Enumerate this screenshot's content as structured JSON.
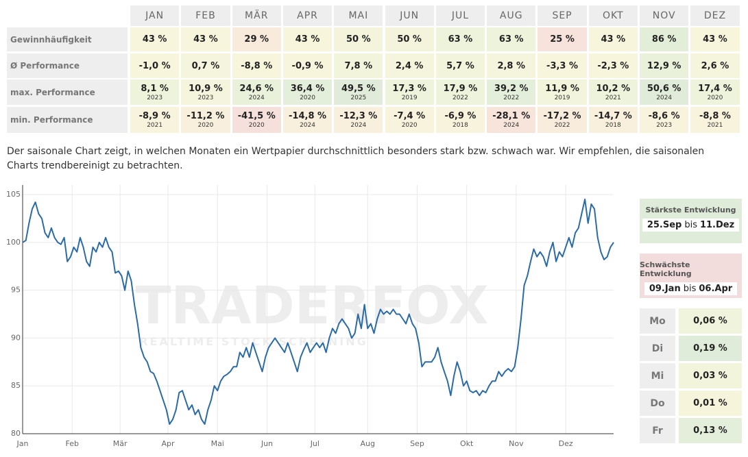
{
  "table": {
    "months": [
      "JAN",
      "FEB",
      "MÄR",
      "APR",
      "MAI",
      "JUN",
      "JUL",
      "AUG",
      "SEP",
      "OKT",
      "NOV",
      "DEZ"
    ],
    "rows": [
      {
        "label": "Gewinnhäufigkeit",
        "values": [
          "43 %",
          "43 %",
          "29 %",
          "43 %",
          "50 %",
          "50 %",
          "63 %",
          "63 %",
          "25 %",
          "43 %",
          "86 %",
          "43 %"
        ],
        "colors": [
          "#f7f5dc",
          "#f7f5dc",
          "#f8ebdc",
          "#f7f5dc",
          "#f4f4dc",
          "#f4f4dc",
          "#eef3dc",
          "#eef3dc",
          "#f8e2dc",
          "#f7f5dc",
          "#e2eed8",
          "#f7f5dc"
        ]
      },
      {
        "label": "Ø Performance",
        "values": [
          "-1,0 %",
          "0,7 %",
          "-8,8 %",
          "-0,9 %",
          "7,8 %",
          "2,4 %",
          "5,7 %",
          "2,8 %",
          "-3,3 %",
          "-2,3 %",
          "12,9 %",
          "2,6 %"
        ],
        "colors": [
          "#f7f5dc",
          "#f5f4dc",
          "#f7f5dc",
          "#f7f5dc",
          "#f2f4dc",
          "#f5f4dc",
          "#f2f4dc",
          "#f5f4dc",
          "#f7f5dc",
          "#f7f5dc",
          "#eaf1da",
          "#f5f4dc"
        ]
      },
      {
        "label": "max. Performance",
        "values": [
          "8,1 %",
          "10,9 %",
          "24,6 %",
          "36,4 %",
          "49,5 %",
          "17,3 %",
          "17,9 %",
          "39,2 %",
          "11,9 %",
          "10,2 %",
          "50,6 %",
          "17,4 %"
        ],
        "years": [
          "2023",
          "2023",
          "2024",
          "2020",
          "2025",
          "2019",
          "2022",
          "2022",
          "2019",
          "2021",
          "2024",
          "2020"
        ],
        "colors": [
          "#eef3dc",
          "#f5f4dc",
          "#eaf1da",
          "#e4efdb",
          "#e0ecd9",
          "#eef3dc",
          "#eef3dc",
          "#e4efdb",
          "#f3f4dc",
          "#eef3dc",
          "#e0ecd9",
          "#eef3dc"
        ]
      },
      {
        "label": "min. Performance",
        "values": [
          "-8,9 %",
          "-11,2 %",
          "-41,5 %",
          "-14,8 %",
          "-12,3 %",
          "-7,4 %",
          "-6,9 %",
          "-28,1 %",
          "-17,2 %",
          "-14,7 %",
          "-8,6 %",
          "-8,8 %"
        ],
        "years": [
          "2021",
          "2020",
          "2020",
          "2024",
          "2024",
          "2020",
          "2018",
          "2024",
          "2022",
          "2018",
          "2023",
          "2021"
        ],
        "colors": [
          "#f8f3dc",
          "#f8f0dc",
          "#f6e0dc",
          "#f8f0dc",
          "#f8f0dc",
          "#f8f3dc",
          "#f8f3dc",
          "#f7e5dc",
          "#f8ecdc",
          "#f8f0dc",
          "#f8f3dc",
          "#f8f3dc"
        ]
      }
    ]
  },
  "text": "Der saisonale Chart zeigt, in welchen Monaten ein Wertpapier durchschnittlich besonders stark bzw. schwach war. Wir empfehlen, die saisonalen Charts trendbereinigt zu betrachten.",
  "chart_data": {
    "type": "line",
    "color": "#2a6aa5",
    "grid": true,
    "watermark": "TRADERFOX",
    "watermark_sub": "REALTIME STOCK SCREENING",
    "xlim": [
      0,
      370
    ],
    "ylim": [
      80,
      106
    ],
    "yticks": [
      80,
      85,
      90,
      95,
      100,
      105
    ],
    "xticks": [
      {
        "value": 0,
        "label": "Jan"
      },
      {
        "value": 31,
        "label": "Feb"
      },
      {
        "value": 61,
        "label": "Mär"
      },
      {
        "value": 91,
        "label": "Apr"
      },
      {
        "value": 122,
        "label": "Mai"
      },
      {
        "value": 153,
        "label": "Jun"
      },
      {
        "value": 183,
        "label": "Jul"
      },
      {
        "value": 216,
        "label": "Aug"
      },
      {
        "value": 247,
        "label": "Sep"
      },
      {
        "value": 278,
        "label": "Okt"
      },
      {
        "value": 309,
        "label": "Nov"
      },
      {
        "value": 340,
        "label": "Dez"
      }
    ],
    "x": [
      0,
      2,
      4,
      6,
      8,
      10,
      12,
      14,
      16,
      18,
      20,
      22,
      24,
      26,
      28,
      30,
      32,
      34,
      36,
      38,
      40,
      42,
      44,
      46,
      48,
      50,
      52,
      54,
      56,
      58,
      60,
      62,
      64,
      66,
      68,
      70,
      72,
      74,
      76,
      78,
      80,
      82,
      84,
      86,
      88,
      90,
      92,
      94,
      96,
      98,
      100,
      102,
      104,
      106,
      108,
      110,
      112,
      114,
      116,
      118,
      120,
      122,
      124,
      126,
      128,
      130,
      132,
      134,
      136,
      138,
      140,
      142,
      144,
      146,
      148,
      150,
      152,
      154,
      156,
      158,
      160,
      162,
      164,
      166,
      168,
      170,
      172,
      174,
      176,
      178,
      180,
      182,
      184,
      186,
      188,
      190,
      192,
      194,
      196,
      198,
      200,
      202,
      204,
      206,
      208,
      210,
      212,
      214,
      216,
      218,
      220,
      222,
      224,
      226,
      228,
      230,
      232,
      234,
      236,
      238,
      240,
      242,
      244,
      246,
      248,
      250,
      252,
      254,
      256,
      258,
      260,
      262,
      264,
      266,
      268,
      270,
      272,
      274,
      276,
      278,
      280,
      282,
      284,
      286,
      288,
      290,
      292,
      294,
      296,
      298,
      300,
      302,
      304,
      306,
      308,
      310,
      312,
      314,
      316,
      318,
      320,
      322,
      324,
      326,
      328,
      330,
      332,
      334,
      336,
      338,
      340,
      342,
      344,
      346,
      348,
      350,
      352,
      354,
      356,
      358,
      360,
      362,
      364,
      366,
      368,
      370
    ],
    "values": [
      100,
      100.2,
      102,
      103.5,
      104.2,
      103,
      102.5,
      101,
      100.5,
      101.5,
      100.5,
      100,
      99.8,
      100.5,
      98,
      98.5,
      99.5,
      99,
      100.5,
      99.5,
      98,
      97.5,
      99.5,
      99,
      100,
      99.5,
      100.5,
      99.5,
      99,
      96.8,
      97,
      96.5,
      95,
      97,
      96,
      93.5,
      91.5,
      89,
      88,
      87.5,
      86.5,
      86.3,
      85.5,
      84.5,
      83.5,
      82.5,
      81,
      81.5,
      82.5,
      84.3,
      84.5,
      83.5,
      82.5,
      83,
      82,
      82.5,
      81.5,
      81,
      82.5,
      83.5,
      85,
      84.5,
      85.5,
      86,
      86.2,
      86.5,
      87,
      87,
      88.5,
      88,
      89,
      88,
      89.5,
      88.5,
      87.5,
      86.5,
      88,
      89,
      89.5,
      90,
      89.5,
      89,
      88.5,
      89.5,
      88.5,
      87.5,
      86.5,
      88,
      88.8,
      89.5,
      88.5,
      89,
      89.5,
      89,
      89.5,
      88.5,
      90,
      91,
      90.5,
      91.5,
      92,
      91.5,
      91,
      90,
      90.5,
      92.5,
      91,
      93.5,
      91,
      91.5,
      90.5,
      92,
      93,
      92.5,
      92.8,
      92.5,
      93,
      92.5,
      92.5,
      92,
      91.5,
      92.5,
      91.5,
      91,
      89.5,
      87,
      87.5,
      87.5,
      87.5,
      88,
      89,
      87.5,
      86.5,
      85.5,
      84,
      86,
      87.5,
      86.5,
      85,
      85.5,
      84.5,
      84.3,
      84.5,
      84,
      84.5,
      84.3,
      85,
      85.5,
      85.5,
      86.5,
      86,
      86.5,
      86.8,
      86.5,
      87,
      89,
      92,
      95.5,
      96.5,
      98,
      99.3,
      98.5,
      99,
      98.5,
      97.5,
      99,
      100,
      98,
      99,
      98.5,
      99.5,
      100.5,
      99.5,
      101,
      101.5,
      103,
      104.5,
      102,
      104,
      103.5,
      100.5,
      99,
      98.2,
      98.5,
      99.5,
      100
    ]
  },
  "side": {
    "best": {
      "title": "Stärkste Entwicklung",
      "from": "25.Sep",
      "sep": "bis",
      "to": "11.Dez",
      "color": "#dfecd9"
    },
    "worst": {
      "title": "Schwächste Entwicklung",
      "from": "09.Jan",
      "sep": "bis",
      "to": "06.Apr",
      "color": "#f2dcdc"
    },
    "weekdays": [
      {
        "day": "Mo",
        "value": "0,06 %",
        "color": "#f1f4dc"
      },
      {
        "day": "Di",
        "value": "0,19 %",
        "color": "#dfecd9"
      },
      {
        "day": "Mi",
        "value": "0,03 %",
        "color": "#f2f4dc"
      },
      {
        "day": "Do",
        "value": "0,01 %",
        "color": "#f6f5dc"
      },
      {
        "day": "Fr",
        "value": "0,13 %",
        "color": "#e4efdb"
      }
    ]
  }
}
